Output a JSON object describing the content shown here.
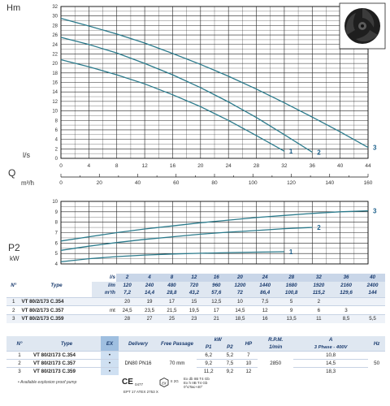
{
  "chart_data": [
    {
      "type": "line",
      "ylabel": "Hm",
      "xlabel_top": "l/s",
      "xlabel_bottom": "Q",
      "xlabel_bottom2": "m³/h",
      "xlim": [
        0,
        44
      ],
      "ylim": [
        0,
        32
      ],
      "x_ticks": [
        "0",
        "4",
        "8",
        "12",
        "16",
        "20",
        "24",
        "28",
        "32",
        "36",
        "40",
        "44"
      ],
      "y_ticks": [
        "0",
        "2",
        "4",
        "6",
        "8",
        "10",
        "12",
        "14",
        "16",
        "18",
        "20",
        "22",
        "24",
        "26",
        "28",
        "30",
        "32"
      ],
      "x2_ticks": [
        "0",
        "20",
        "40",
        "60",
        "80",
        "100",
        "120",
        "140",
        "160"
      ],
      "x2_range": [
        0,
        160
      ],
      "grid": true,
      "series": [
        {
          "name": "1",
          "x": [
            0,
            4,
            8,
            12,
            16,
            20,
            24,
            28,
            32
          ],
          "y": [
            20.8,
            19.3,
            17.6,
            15.7,
            13.4,
            10.9,
            8,
            4.8,
            1.5
          ]
        },
        {
          "name": "2",
          "x": [
            0,
            4,
            8,
            12,
            16,
            20,
            24,
            28,
            32,
            36
          ],
          "y": [
            25.5,
            24,
            22.2,
            20,
            17.6,
            14.9,
            11.9,
            8.6,
            5,
            1.3
          ]
        },
        {
          "name": "3",
          "x": [
            0,
            4,
            8,
            12,
            16,
            20,
            24,
            28,
            32,
            36,
            40,
            44
          ],
          "y": [
            29.5,
            27.9,
            26.2,
            24.3,
            22.1,
            19.8,
            17.3,
            14.6,
            11.7,
            8.7,
            5.6,
            2.3
          ]
        }
      ]
    },
    {
      "type": "line",
      "ylabel": "P2",
      "yunit": "kW",
      "xlim": [
        0,
        44
      ],
      "ylim": [
        4,
        10
      ],
      "y_ticks": [
        "4",
        "5",
        "6",
        "7",
        "8",
        "9",
        "10"
      ],
      "grid": true,
      "series": [
        {
          "name": "1",
          "x": [
            0,
            4,
            8,
            12,
            16,
            20,
            24,
            28,
            32
          ],
          "y": [
            4.2,
            4.5,
            4.7,
            4.85,
            4.95,
            5.02,
            5.08,
            5.13,
            5.17
          ]
        },
        {
          "name": "2",
          "x": [
            0,
            4,
            8,
            12,
            16,
            20,
            24,
            28,
            32,
            36
          ],
          "y": [
            5.3,
            5.7,
            6.05,
            6.35,
            6.6,
            6.85,
            7.05,
            7.2,
            7.38,
            7.5
          ]
        },
        {
          "name": "3",
          "x": [
            0,
            4,
            8,
            12,
            16,
            20,
            24,
            28,
            32,
            36,
            40,
            44
          ],
          "y": [
            6.2,
            6.6,
            7,
            7.35,
            7.65,
            7.95,
            8.2,
            8.45,
            8.65,
            8.85,
            9.0,
            9.1
          ]
        }
      ]
    }
  ],
  "perf_table": {
    "col_n": "N°",
    "col_type": "Type",
    "unit_ls": "l/s",
    "unit_lm": "l/m",
    "unit_m3h": "m³/h",
    "unit_mt": "mt",
    "ls": [
      "2",
      "4",
      "8",
      "12",
      "16",
      "20",
      "24",
      "28",
      "32",
      "36",
      "40"
    ],
    "lm": [
      "120",
      "240",
      "480",
      "720",
      "960",
      "1200",
      "1440",
      "1680",
      "1920",
      "2160",
      "2400"
    ],
    "m3h": [
      "7,2",
      "14,4",
      "28,8",
      "43,2",
      "57,6",
      "72",
      "86,4",
      "100,8",
      "115,2",
      "129,6",
      "144"
    ],
    "rows": [
      {
        "n": "1",
        "type": "VT 80/2/173 C.354",
        "values": [
          "20",
          "19",
          "17",
          "15",
          "12,5",
          "10",
          "7,5",
          "5",
          "2",
          "",
          ""
        ]
      },
      {
        "n": "2",
        "type": "VT 80/2/173 C.357",
        "values": [
          "24,5",
          "23,5",
          "21,5",
          "19,5",
          "17",
          "14,5",
          "12",
          "9",
          "6",
          "3",
          ""
        ]
      },
      {
        "n": "3",
        "type": "VT 80/2/173 C.359",
        "values": [
          "28",
          "27",
          "25",
          "23",
          "21",
          "18,5",
          "16",
          "13,5",
          "11",
          "8,5",
          "5,5"
        ]
      }
    ]
  },
  "spec_table": {
    "col_n": "N°",
    "col_type": "Type",
    "col_ex": "EX",
    "col_delivery": "Delivery",
    "col_passage": "Free Passage",
    "col_kw": "kW",
    "col_p1": "P1",
    "col_p2": "P2",
    "col_hp": "HP",
    "col_rpm": "R.P.M.",
    "col_rpm_unit": "1/min",
    "col_a": "A",
    "col_a_sub": "3 Phase - 400V",
    "col_hz": "Hz",
    "delivery": "DN80 PN16",
    "passage": "70 mm",
    "rpm": "2850",
    "hz": "50",
    "rows": [
      {
        "n": "1",
        "type": "VT 80/2/173 C.354",
        "ex": "•",
        "p1": "6,2",
        "p2": "5,2",
        "hp": "7",
        "a": "10,8"
      },
      {
        "n": "2",
        "type": "VT 80/2/173 C.357",
        "ex": "•",
        "p1": "9,2",
        "p2": "7,5",
        "hp": "10",
        "a": "14,5"
      },
      {
        "n": "3",
        "type": "VT 80/2/173 C.359",
        "ex": "•",
        "p1": "11,2",
        "p2": "9,2",
        "hp": "12",
        "a": "18,3"
      }
    ]
  },
  "footnote": "• Available explosion proof pump",
  "cert": {
    "ce": "CE",
    "ce_num": "0477",
    "atex": "EPT 17 ATEX 2753 X",
    "ex_mark": "II 2G",
    "ex_line1": "Ex db IIB T4 Gb",
    "ex_line2": "Ex h IIB T4 Gb",
    "ex_line3": "0°≤Ta≤+40°"
  },
  "colors": {
    "curve": "#2b7b8c",
    "label": "#1b5f8a",
    "grid": "#222222",
    "header": "#1a3b6e"
  }
}
